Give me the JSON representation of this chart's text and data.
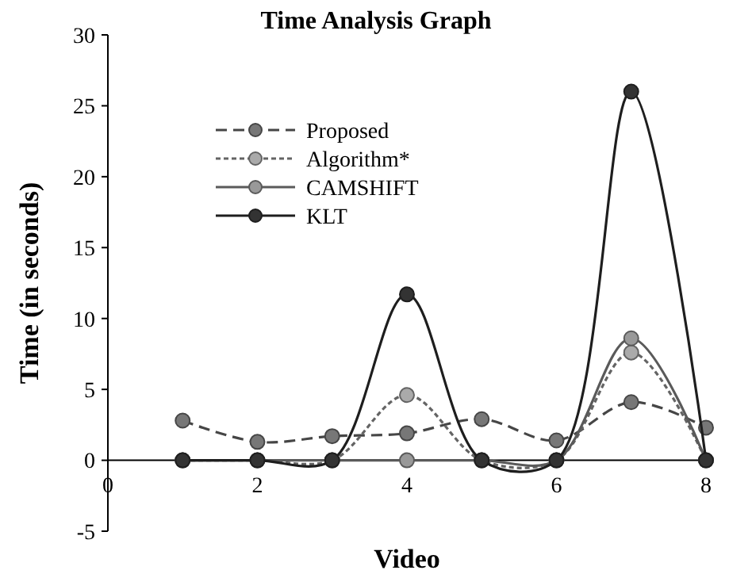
{
  "chart_data": {
    "type": "line",
    "title": "Time Analysis Graph",
    "xlabel": "Video",
    "ylabel": "Time (in seconds)",
    "x": [
      1,
      2,
      3,
      4,
      5,
      6,
      7,
      8
    ],
    "series": [
      {
        "name": "Proposed",
        "color": "#777777",
        "line_style": "dashed",
        "values": [
          2.8,
          1.3,
          1.7,
          1.9,
          2.9,
          1.4,
          4.1,
          2.3
        ]
      },
      {
        "name": "Algorithm*",
        "color": "#aaaaaa",
        "line_style": "dotted",
        "values": [
          0,
          0,
          0,
          4.6,
          0,
          0,
          7.6,
          0
        ]
      },
      {
        "name": "CAMSHIFT",
        "color": "#999999",
        "line_style": "solid",
        "values": [
          0,
          0,
          0,
          0,
          0,
          0,
          8.6,
          0
        ]
      },
      {
        "name": "KLT",
        "color": "#333333",
        "line_style": "solid",
        "values": [
          0,
          0,
          0,
          11.7,
          0,
          0,
          26,
          0
        ]
      }
    ],
    "xlim": [
      0,
      8
    ],
    "xticks": [
      0,
      2,
      4,
      6,
      8
    ],
    "ylim": [
      -5,
      30
    ],
    "yticks": [
      -5,
      0,
      5,
      10,
      15,
      20,
      25,
      30
    ],
    "grid": false,
    "legend": "top left",
    "marker": "circle"
  }
}
